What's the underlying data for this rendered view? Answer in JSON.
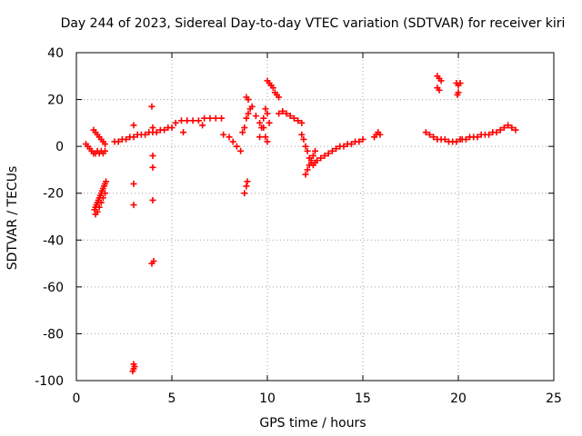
{
  "chart_data": {
    "type": "scatter",
    "title": "Day 244 of 2023, Sidereal Day-to-day VTEC variation (SDTVAR) for receiver kiri",
    "xlabel": "GPS time / hours",
    "ylabel": "SDTVAR / TECUs",
    "xlim": [
      0,
      25
    ],
    "ylim": [
      -100,
      40
    ],
    "x_ticks": [
      0,
      5,
      10,
      15,
      20,
      25
    ],
    "x_tick_labels": [
      "0",
      "5",
      "10",
      "15",
      "20",
      "25"
    ],
    "y_ticks": [
      40,
      20,
      0,
      -20,
      -40,
      -60,
      -80,
      -100
    ],
    "y_tick_labels": [
      "40",
      "20",
      "0",
      "-20",
      "-40",
      "-60",
      "-80",
      "-100"
    ],
    "grid": true,
    "legend": "none",
    "marker": "plus",
    "color": "#ff0000",
    "series": [
      {
        "x": [
          0.5,
          0.6,
          0.7,
          0.8,
          0.9,
          1.0,
          1.1,
          1.2,
          1.3,
          1.4,
          1.5,
          0.9,
          1.0,
          1.1,
          1.2,
          1.3,
          1.4,
          1.5,
          0.95,
          1.0,
          1.05,
          1.1,
          1.15,
          1.2,
          1.25,
          1.3,
          1.35,
          1.4,
          1.45,
          1.5,
          1.55,
          1.0,
          1.1,
          1.2,
          1.3,
          1.4,
          1.5,
          2.0,
          2.2,
          2.4,
          2.6,
          2.8,
          3.0,
          3.2,
          3.4,
          3.6,
          3.8,
          4.0,
          4.2,
          4.4,
          4.6,
          4.8,
          5.0,
          3.0,
          3.0,
          3.0,
          3.0,
          3.0,
          2.95,
          3.05,
          3.95,
          4.0,
          4.0,
          4.0,
          4.0,
          4.05,
          3.95,
          5.2,
          5.5,
          5.8,
          6.1,
          6.4,
          6.7,
          7.0,
          7.3,
          7.6,
          5.6,
          6.6,
          7.7,
          8.0,
          8.2,
          8.4,
          8.6,
          8.7,
          8.8,
          8.9,
          9.0,
          9.1,
          8.8,
          8.9,
          8.95,
          8.9,
          9.0,
          9.2,
          9.4,
          9.6,
          9.8,
          9.9,
          10.0,
          9.6,
          9.7,
          9.8,
          9.9,
          10.0,
          10.1,
          10.0,
          10.1,
          10.2,
          10.3,
          10.4,
          10.5,
          10.6,
          10.6,
          10.8,
          11.0,
          11.2,
          11.4,
          11.6,
          11.8,
          11.8,
          11.9,
          12.0,
          12.1,
          12.2,
          12.3,
          12.4,
          12.5,
          12.6,
          12.8,
          13.0,
          13.2,
          13.4,
          12.0,
          12.1,
          12.2,
          12.3,
          12.4,
          12.5,
          13.6,
          13.8,
          14.0,
          14.2,
          14.4,
          14.6,
          14.8,
          15.0,
          15.6,
          15.7,
          15.8,
          15.9,
          18.3,
          18.5,
          18.7,
          18.9,
          19.1,
          19.3,
          19.5,
          19.7,
          19.9,
          20.1,
          18.9,
          19.0,
          19.1,
          18.9,
          19.0,
          19.9,
          20.0,
          20.1,
          19.95,
          20.0,
          20.2,
          20.4,
          20.6,
          20.8,
          21.0,
          21.2,
          21.4,
          21.6,
          21.8,
          22.0,
          22.2,
          22.4,
          22.6,
          22.8,
          23.0
        ],
        "y": [
          1,
          0,
          -1,
          -2,
          -3,
          -3,
          -2,
          -3,
          -2,
          -3,
          -2,
          7,
          6,
          5,
          4,
          3,
          2,
          1,
          -27,
          -26,
          -25,
          -24,
          -23,
          -22,
          -21,
          -20,
          -19,
          -18,
          -17,
          -16,
          -15,
          -29,
          -28,
          -26,
          -24,
          -22,
          -20,
          2,
          2,
          3,
          3,
          4,
          4,
          5,
          5,
          5,
          6,
          6,
          6,
          7,
          7,
          8,
          8,
          9,
          -16,
          -25,
          -93,
          -95,
          -96,
          -94,
          17,
          8,
          -4,
          -9,
          -23,
          -49,
          -50,
          10,
          11,
          11,
          11,
          11,
          12,
          12,
          12,
          12,
          6,
          9,
          5,
          4,
          2,
          0,
          -2,
          6,
          8,
          12,
          14,
          16,
          -20,
          -17,
          -15,
          21,
          20,
          17,
          13,
          10,
          8,
          4,
          2,
          4,
          8,
          12,
          16,
          14,
          10,
          28,
          27,
          26,
          25,
          23,
          22,
          21,
          14,
          15,
          14,
          13,
          12,
          11,
          10,
          5,
          3,
          0,
          -2,
          -5,
          -7,
          -8,
          -7,
          -6,
          -5,
          -4,
          -3,
          -2,
          -12,
          -10,
          -8,
          -6,
          -4,
          -2,
          -1,
          0,
          0,
          1,
          1,
          2,
          2,
          3,
          4,
          5,
          6,
          5,
          6,
          5,
          4,
          3,
          3,
          3,
          2,
          2,
          2,
          3,
          30,
          29,
          28,
          25,
          24,
          27,
          26,
          27,
          22,
          23,
          3,
          3,
          4,
          4,
          4,
          5,
          5,
          5,
          6,
          6,
          7,
          8,
          9,
          8,
          7
        ]
      }
    ]
  }
}
